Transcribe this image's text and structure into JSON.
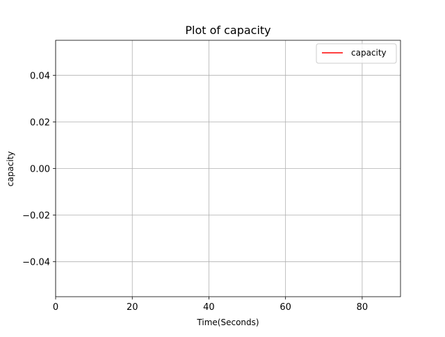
{
  "chart_data": {
    "type": "line",
    "title": "Plot of capacity",
    "xlabel": "Time(Seconds)",
    "ylabel": "capacity",
    "xlim": [
      0,
      90
    ],
    "ylim": [
      -0.055,
      0.055
    ],
    "x_ticks": [
      0,
      20,
      40,
      60,
      80
    ],
    "x_tick_labels": [
      "0",
      "20",
      "40",
      "60",
      "80"
    ],
    "y_ticks": [
      -0.04,
      -0.02,
      0.0,
      0.02,
      0.04
    ],
    "y_tick_labels": [
      "−0.04",
      "−0.02",
      "0.00",
      "0.02",
      "0.04"
    ],
    "grid": true,
    "legend_position": "top-right",
    "series": [
      {
        "name": "capacity",
        "color": "#ff0000",
        "x": [],
        "y": []
      }
    ],
    "colors": {
      "grid": "#b0b0b0",
      "axes": "#000000",
      "legend_border": "#cccccc"
    }
  }
}
